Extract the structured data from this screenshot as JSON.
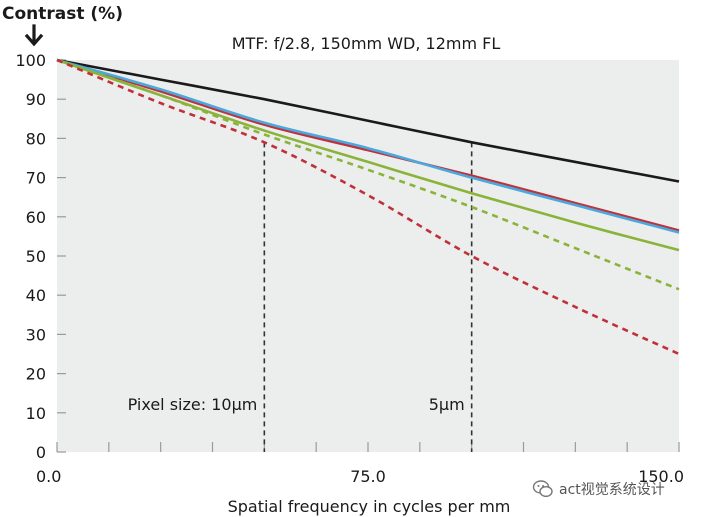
{
  "chart_data": {
    "type": "line",
    "title": "MTF: f/2.8, 150mm WD, 12mm FL",
    "ylabel": "Contrast (%)",
    "xlabel": "Spatial frequency in cycles per mm",
    "xlim": [
      0,
      150
    ],
    "ylim": [
      0,
      100
    ],
    "x_tick_labels": [
      "0.0",
      "75.0",
      "150.0"
    ],
    "x_tick_values": [
      0,
      75,
      150
    ],
    "y_ticks": [
      0,
      10,
      20,
      30,
      40,
      50,
      60,
      70,
      80,
      90,
      100
    ],
    "grid": "background-fill",
    "series": [
      {
        "color": "#1a1a1a",
        "style": "solid",
        "x": [
          0,
          25,
          50,
          75,
          100,
          125,
          150
        ],
        "y": [
          100,
          95,
          90,
          84.5,
          79,
          74,
          69
        ]
      },
      {
        "color": "#c0303a",
        "style": "solid",
        "x": [
          0,
          25,
          50,
          75,
          100,
          125,
          150
        ],
        "y": [
          100,
          92,
          83.5,
          77,
          70.5,
          63.5,
          56.5
        ]
      },
      {
        "color": "#4aa8dc",
        "style": "solid",
        "x": [
          0,
          25,
          50,
          75,
          100,
          125,
          150
        ],
        "y": [
          100,
          92.5,
          84,
          77.5,
          70,
          63,
          56
        ]
      },
      {
        "color": "#8ab33a",
        "style": "solid",
        "x": [
          0,
          25,
          50,
          75,
          100,
          125,
          150
        ],
        "y": [
          100,
          91,
          82,
          74,
          66,
          58.5,
          51.5
        ]
      },
      {
        "color": "#8ab33a",
        "style": "dashed",
        "x": [
          0,
          25,
          50,
          75,
          100,
          125,
          150
        ],
        "y": [
          100,
          91,
          81,
          72,
          62.5,
          52,
          41.5
        ]
      },
      {
        "color": "#c0303a",
        "style": "dashed",
        "x": [
          0,
          25,
          50,
          75,
          100,
          125,
          150
        ],
        "y": [
          100,
          89,
          79,
          65.5,
          50,
          37,
          25
        ]
      }
    ],
    "reference_lines": [
      {
        "x": 50,
        "label": "Pixel size: 10μm"
      },
      {
        "x": 100,
        "label": "5μm"
      }
    ]
  },
  "watermark": {
    "text": "act视觉系统设计",
    "icon": "wechat-icon"
  }
}
